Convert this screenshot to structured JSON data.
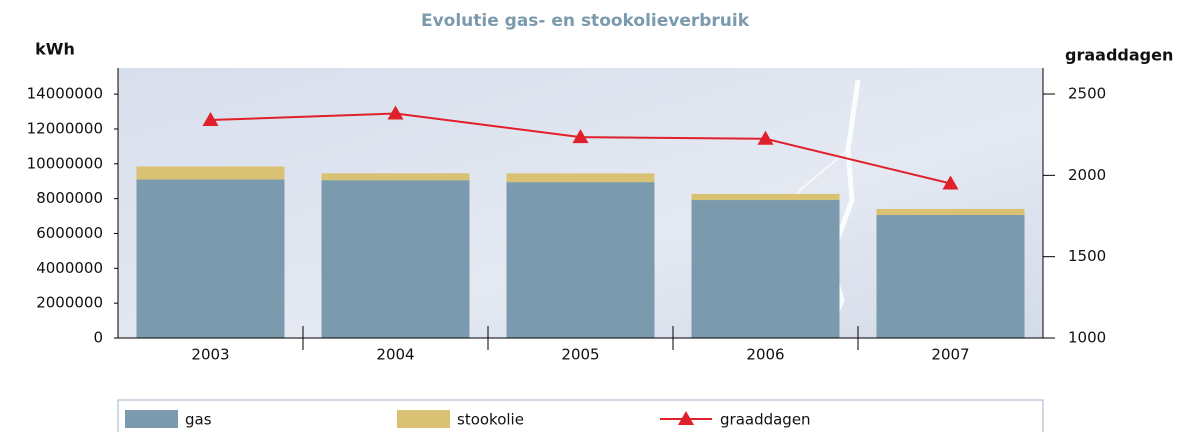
{
  "chart_data": {
    "type": "bar",
    "title": "Evolutie gas- en stookolieverbruik",
    "y_label": "kWh",
    "y2_label": "graaddagen",
    "categories": [
      "2003",
      "2004",
      "2005",
      "2006",
      "2007"
    ],
    "stacked": true,
    "series": [
      {
        "name": "gas",
        "type": "bar",
        "color": "#7b9aad",
        "values": [
          9100000,
          9060000,
          8950000,
          7920000,
          7060000
        ]
      },
      {
        "name": "stookolie",
        "type": "bar",
        "color": "#d9c273",
        "values": [
          750000,
          400000,
          500000,
          350000,
          350000
        ]
      },
      {
        "name": "graaddagen",
        "type": "line",
        "axis": "y2",
        "color": "#e0202a",
        "marker": "triangle",
        "values": [
          2340,
          2380,
          2235,
          2225,
          1950
        ]
      }
    ],
    "ylim": [
      0,
      15500000
    ],
    "yticks": [
      0,
      2000000,
      4000000,
      6000000,
      8000000,
      10000000,
      12000000,
      14000000
    ],
    "y2lim": [
      1000,
      2660
    ],
    "y2ticks": [
      1000,
      1500,
      2000,
      2500
    ],
    "grid": false,
    "legend": "bottom"
  }
}
